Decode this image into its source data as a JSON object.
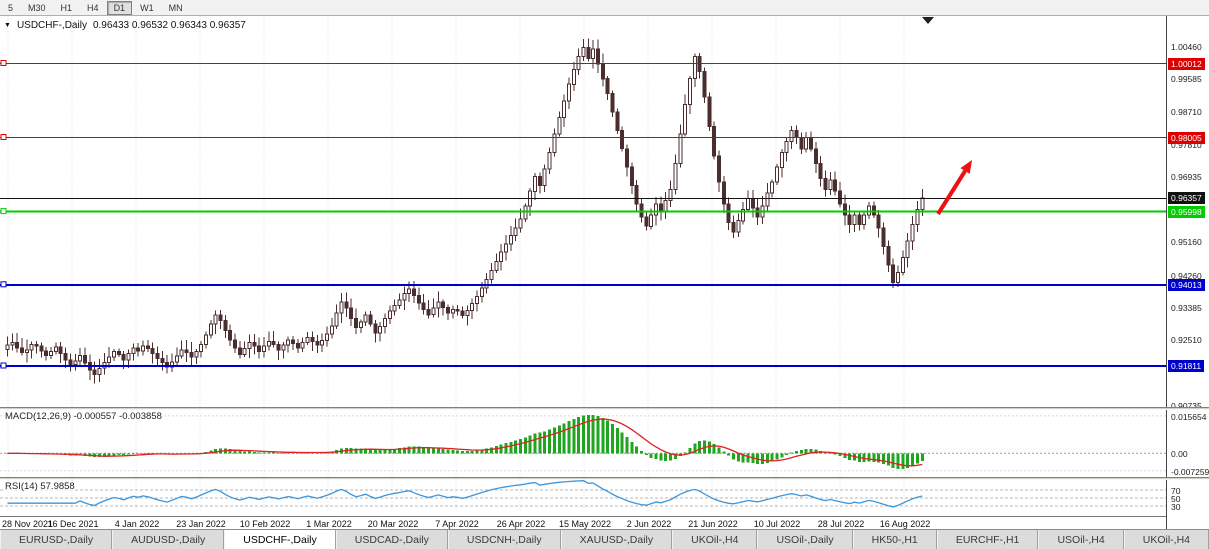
{
  "toolbar": {
    "periods": [
      {
        "label": "5",
        "active": false
      },
      {
        "label": "M30",
        "active": false
      },
      {
        "label": "H1",
        "active": false
      },
      {
        "label": "H4",
        "active": false
      },
      {
        "label": "D1",
        "active": true
      },
      {
        "label": "W1",
        "active": false
      },
      {
        "label": "MN",
        "active": false
      }
    ]
  },
  "chart_data": {
    "type": "candlestick",
    "symbol": "USDCHF-",
    "timeframe": "Daily",
    "header": {
      "symbol": "USDCHF-,Daily",
      "ohlc": "0.96433 0.96532 0.96343 0.96357"
    },
    "price_range": {
      "max": 1.013,
      "min": 0.907
    },
    "price_axis_ticks": [
      "1.00460",
      "0.99585",
      "0.98710",
      "0.97810",
      "0.96935",
      "0.95160",
      "0.94260",
      "0.93385",
      "0.92510",
      "0.90735"
    ],
    "x_labels": [
      "28 Nov 2021",
      "16 Dec 2021",
      "4 Jan 2022",
      "23 Jan 2022",
      "10 Feb 2022",
      "1 Mar 2022",
      "20 Mar 2022",
      "7 Apr 2022",
      "26 Apr 2022",
      "15 May 2022",
      "2 Jun 2022",
      "21 Jun 2022",
      "10 Jul 2022",
      "28 Jul 2022",
      "16 Aug 2022"
    ],
    "closes": [
      0.9238,
      0.9245,
      0.923,
      0.9218,
      0.9225,
      0.924,
      0.9235,
      0.9222,
      0.921,
      0.922,
      0.9232,
      0.9215,
      0.9198,
      0.9185,
      0.9195,
      0.921,
      0.919,
      0.917,
      0.9158,
      0.9175,
      0.919,
      0.9205,
      0.922,
      0.9212,
      0.9198,
      0.9215,
      0.923,
      0.9222,
      0.9235,
      0.9228,
      0.9215,
      0.9202,
      0.919,
      0.9178,
      0.9192,
      0.9208,
      0.9225,
      0.9218,
      0.9205,
      0.922,
      0.924,
      0.9265,
      0.9295,
      0.932,
      0.9305,
      0.9278,
      0.9252,
      0.923,
      0.9212,
      0.9228,
      0.9245,
      0.9235,
      0.922,
      0.9235,
      0.9248,
      0.924,
      0.9225,
      0.9238,
      0.9252,
      0.9242,
      0.923,
      0.9245,
      0.9258,
      0.9248,
      0.9238,
      0.925,
      0.9268,
      0.929,
      0.9325,
      0.9355,
      0.9338,
      0.931,
      0.9285,
      0.93,
      0.932,
      0.9295,
      0.927,
      0.9288,
      0.931,
      0.933,
      0.9345,
      0.936,
      0.9378,
      0.939,
      0.9372,
      0.9352,
      0.9335,
      0.932,
      0.9338,
      0.9355,
      0.934,
      0.9325,
      0.9335,
      0.933,
      0.9318,
      0.9332,
      0.935,
      0.937,
      0.9392,
      0.9415,
      0.944,
      0.9465,
      0.949,
      0.9512,
      0.9535,
      0.9555,
      0.958,
      0.9615,
      0.9655,
      0.9695,
      0.967,
      0.9715,
      0.976,
      0.981,
      0.9855,
      0.99,
      0.9945,
      0.9985,
      1.002,
      1.0045,
      1.0015,
      1.004,
      1.0,
      0.996,
      0.992,
      0.987,
      0.982,
      0.977,
      0.972,
      0.967,
      0.962,
      0.9585,
      0.956,
      0.959,
      0.962,
      0.96,
      0.963,
      0.966,
      0.973,
      0.981,
      0.989,
      0.996,
      1.002,
      0.998,
      0.991,
      0.983,
      0.975,
      0.968,
      0.962,
      0.957,
      0.9545,
      0.9575,
      0.9605,
      0.9635,
      0.961,
      0.9585,
      0.9615,
      0.965,
      0.968,
      0.972,
      0.976,
      0.979,
      0.982,
      0.98,
      0.977,
      0.98,
      0.977,
      0.973,
      0.969,
      0.966,
      0.9685,
      0.9655,
      0.962,
      0.959,
      0.9565,
      0.959,
      0.9565,
      0.959,
      0.9615,
      0.959,
      0.9555,
      0.9505,
      0.9455,
      0.9408,
      0.9435,
      0.9475,
      0.952,
      0.9565,
      0.9605,
      0.9636
    ],
    "candle_colors": {
      "up_fill": "#ffffff",
      "down_fill": "#4a2e2e",
      "stroke": "#4a2e2e"
    },
    "lines": [
      {
        "value": 1.00012,
        "label": "1.00012",
        "color": "#dd0000",
        "width": 1,
        "name": "resistance-line-1-00012",
        "no_handle": false
      },
      {
        "value": 0.98005,
        "label": "0.98005",
        "color": "#dd0000",
        "width": 1,
        "name": "resistance-line-0-98005",
        "no_handle": false
      },
      {
        "value": 0.96357,
        "label": "0.96357",
        "color": "#111111",
        "width": 1,
        "name": "current-price-line",
        "no_handle": true
      },
      {
        "value": 0.95998,
        "label": "0.95998",
        "color": "#00cc00",
        "width": 2,
        "name": "support-line-0-95998",
        "no_handle": false
      },
      {
        "value": 0.94013,
        "label": "0.94013",
        "color": "#0000cc",
        "width": 2,
        "name": "support-line-0-94013",
        "no_handle": false
      },
      {
        "value": 0.91811,
        "label": "0.91811",
        "color": "#0000cc",
        "width": 2,
        "name": "support-line-0-91811",
        "no_handle": false
      }
    ],
    "arrow": {
      "from": [
        938,
        198
      ],
      "to": [
        972,
        144
      ],
      "color": "#ee1111"
    },
    "macd": {
      "label": "MACD(12,26,9) -0.000557 -0.003858",
      "params": [
        12,
        26,
        9
      ],
      "value_main": "-0.000557",
      "value_signal": "-0.003858",
      "axis_labels": [
        "0.015654",
        "0.00",
        "-0.007259"
      ],
      "histogram_color": "#1fa51f",
      "signal_color": "#dd2222"
    },
    "rsi": {
      "label": "RSI(14) 57.9858",
      "period": 14,
      "value": "57.9858",
      "levels": [
        70,
        50,
        30
      ],
      "line_color": "#3a96dd"
    }
  },
  "tabs": [
    {
      "label": "EURUSD-,Daily",
      "active": false
    },
    {
      "label": "AUDUSD-,Daily",
      "active": false
    },
    {
      "label": "USDCHF-,Daily",
      "active": true
    },
    {
      "label": "USDCAD-,Daily",
      "active": false
    },
    {
      "label": "USDCNH-,Daily",
      "active": false
    },
    {
      "label": "XAUUSD-,Daily",
      "active": false
    },
    {
      "label": "UKOil-,H4",
      "active": false
    },
    {
      "label": "USOil-,Daily",
      "active": false
    },
    {
      "label": "HK50-,H1",
      "active": false
    },
    {
      "label": "EURCHF-,H1",
      "active": false
    },
    {
      "label": "USOil-,H4",
      "active": false
    },
    {
      "label": "UKOil-,H4",
      "active": false
    }
  ]
}
